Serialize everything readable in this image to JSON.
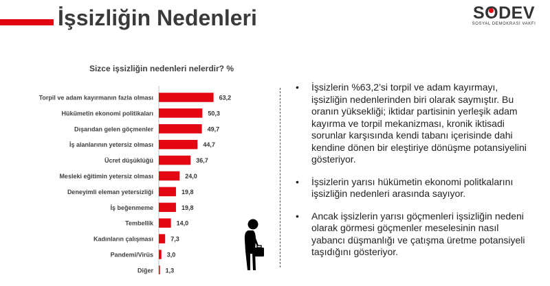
{
  "header": {
    "title": "İşsizliğin Nedenleri"
  },
  "logo": {
    "name_before_o": "S",
    "name_after_o": "DEV",
    "o_letter": "O",
    "subtitle": "SOSYAL DEMOKRASİ VAKFI"
  },
  "colors": {
    "accent": "#e30613",
    "bar": "#e30613",
    "text": "#3a3a3a"
  },
  "chart_data": {
    "type": "bar",
    "orientation": "horizontal",
    "title": "Sizce işsizliğin nedenleri nelerdir? %",
    "categories": [
      "Torpil ve adam kayırmanın fazla olması",
      "Hükümetin ekonomi politikaları",
      "Dışarıdan gelen göçmenler",
      "İş alanlarının yetersiz olması",
      "Ücret düşüklüğü",
      "Mesleki eğitimin yetersiz olması",
      "Deneyimli eleman yetersizliği",
      "İş beğenmeme",
      "Tembellik",
      "Kadınların çalışması",
      "Pandemi/Virüs",
      "Diğer"
    ],
    "values": [
      63.2,
      50.3,
      49.7,
      44.7,
      36.7,
      24.0,
      19.8,
      19.8,
      14.0,
      7.3,
      3.0,
      1.3
    ],
    "value_labels": [
      "63,2",
      "50,3",
      "49,7",
      "44,7",
      "36,7",
      "24,0",
      "19,8",
      "19,8",
      "14,0",
      "7,3",
      "3,0",
      "1,3"
    ],
    "xlim": [
      0,
      100
    ],
    "grid": false,
    "legend": "none"
  },
  "bullets": [
    "İşsizlerin %63,2’si torpil ve adam kayırmayı, işsizliğin nedenlerinden biri olarak saymıştır. Bu oranın yüksekliği; iktidar partisinin yerleşik adam kayırma ve torpil mekanizması, kronik iktisadi sorunlar karşısında kendi tabanı içerisinde dahi kendine dönen bir eleştiriye dönüşme potansiyelini gösteriyor.",
    "İşsizlerin yarısı hükümetin ekonomi politkalarını işsizliğin nedenleri arasında sayıyor.",
    "Ancak işsizlerin yarısı göçmenleri işsizliğin nedeni olarak görmesi göçmenler meselesinin nasıl yabancı düşmanlığı ve çatışma üretme potansiyeli taşıdığını gösteriyor."
  ],
  "bullet_symbol": "•"
}
